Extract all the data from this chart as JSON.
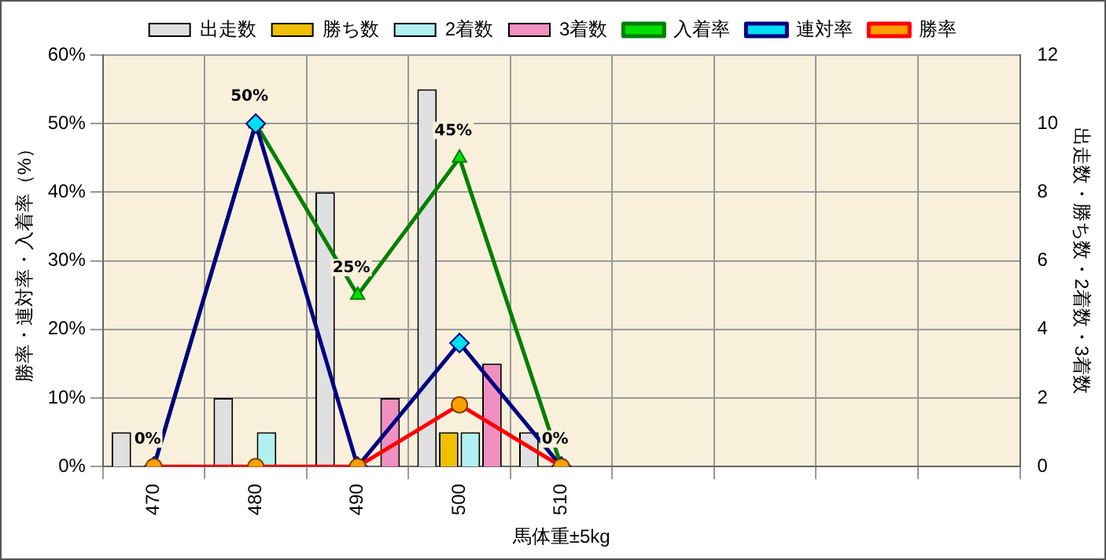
{
  "chart_data": {
    "type": "bar",
    "xlabel": "馬体重±5kg",
    "ylabel": "勝率・連対率・入着率（%）",
    "y2label": "出走数・勝ち数・2着数・3着数",
    "categories": [
      "470",
      "480",
      "490",
      "500",
      "510",
      null,
      null,
      null,
      null
    ],
    "series": [
      {
        "name": "出走数",
        "axis": "y2",
        "color": "#e0e0e0",
        "values": [
          1,
          2,
          8,
          11,
          1,
          null,
          null,
          null,
          null
        ]
      },
      {
        "name": "勝ち数",
        "axis": "y2",
        "color": "#f0c000",
        "values": [
          0,
          0,
          0,
          1,
          0,
          null,
          null,
          null,
          null
        ]
      },
      {
        "name": "2着数",
        "axis": "y2",
        "color": "#b0f0f0",
        "values": [
          0,
          1,
          0,
          1,
          0,
          null,
          null,
          null,
          null
        ]
      },
      {
        "name": "3着数",
        "axis": "y2",
        "color": "#f090c0",
        "values": [
          0,
          0,
          2,
          3,
          0,
          null,
          null,
          null,
          null
        ]
      },
      {
        "name": "入着率",
        "type": "line",
        "axis": "y",
        "color": "#008000",
        "marker": "triangle",
        "values": [
          0,
          50,
          25,
          45,
          0,
          null,
          null,
          null,
          null
        ],
        "value_labels": [
          "0%",
          "50%",
          "25%",
          "45%",
          "0%",
          null,
          null,
          null,
          null
        ]
      },
      {
        "name": "連対率",
        "type": "line",
        "axis": "y",
        "color": "#000080",
        "marker": "diamond",
        "values": [
          0,
          50,
          0,
          18,
          0,
          null,
          null,
          null,
          null
        ]
      },
      {
        "name": "勝率",
        "type": "line",
        "axis": "y",
        "color": "#ff0000",
        "marker": "circle",
        "values": [
          0,
          0,
          0,
          9,
          0,
          null,
          null,
          null,
          null
        ]
      }
    ],
    "ylim": [
      0,
      60
    ],
    "yticks": [
      {
        "value": 0,
        "label": "0%"
      },
      {
        "value": 10,
        "label": "10%"
      },
      {
        "value": 20,
        "label": "20%"
      },
      {
        "value": 30,
        "label": "30%"
      },
      {
        "value": 40,
        "label": "40%"
      },
      {
        "value": 50,
        "label": "50%"
      },
      {
        "value": 60,
        "label": "60%"
      }
    ],
    "y2lim": [
      0,
      12
    ],
    "y2ticks": [
      0,
      2,
      4,
      6,
      8,
      10,
      12
    ],
    "grid": true,
    "legend": "top"
  }
}
